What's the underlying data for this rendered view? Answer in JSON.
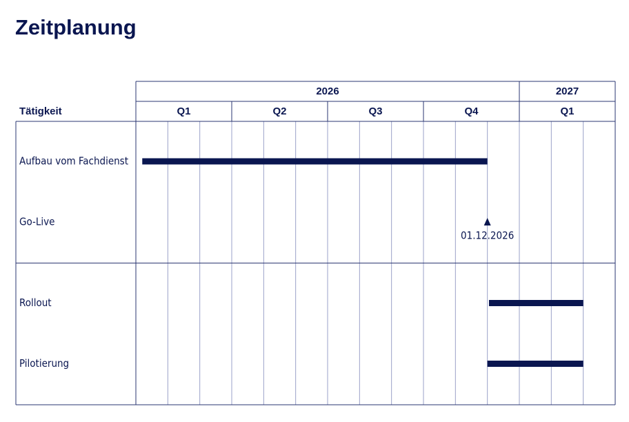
{
  "chart_data": {
    "type": "gantt",
    "title": "Zeitplanung",
    "label_header": "Tätigkeit",
    "color": "#0a1650",
    "xlim": [
      0,
      15
    ],
    "xticks": [
      0,
      1,
      2,
      3,
      4,
      5,
      6,
      7,
      8,
      9,
      10,
      11,
      12,
      13,
      14,
      15
    ],
    "grid": true,
    "years": [
      {
        "label": "2026",
        "range": [
          0,
          12
        ]
      },
      {
        "label": "2027",
        "range": [
          12,
          15
        ]
      }
    ],
    "quarters": [
      {
        "label": "Q1",
        "range": [
          0,
          3
        ]
      },
      {
        "label": "Q2",
        "range": [
          3,
          6
        ]
      },
      {
        "label": "Q3",
        "range": [
          6,
          9
        ]
      },
      {
        "label": "Q4",
        "range": [
          9,
          12
        ]
      },
      {
        "label": "Q1",
        "range": [
          12,
          15
        ]
      }
    ],
    "groups": [
      {
        "rows": [
          {
            "label": "Aufbau vom Fachdienst",
            "start": 0.2,
            "end": 11
          },
          {
            "label": "Go-Live",
            "milestone": 11,
            "value_label": "01.12.2026"
          }
        ]
      },
      {
        "rows": [
          {
            "label": "Rollout",
            "start": 11.05,
            "end": 14
          },
          {
            "label": "Pilotierung",
            "start": 11,
            "end": 14
          }
        ]
      }
    ]
  }
}
